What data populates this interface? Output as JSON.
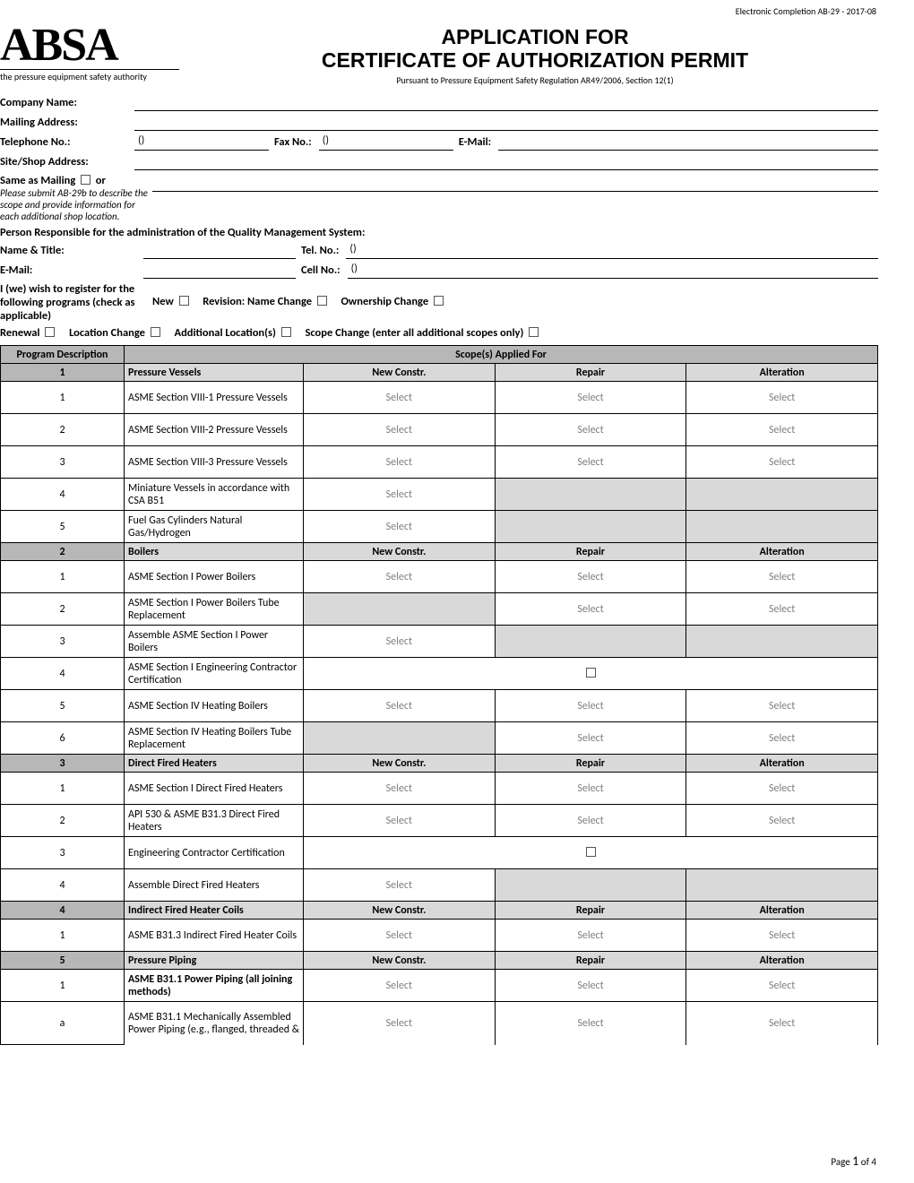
{
  "meta": {
    "form_id": "Electronic Completion AB-29 - 2017-08"
  },
  "logo": {
    "name": "ABSA",
    "tagline": "the pressure equipment safety authority"
  },
  "title": {
    "line1": "APPLICATION FOR",
    "line2": "CERTIFICATE OF AUTHORIZATION PERMIT",
    "sub": "Pursuant to Pressure Equipment Safety Regulation AR49/2006, Section 12(1)"
  },
  "labels": {
    "company": "Company Name:",
    "mailing": "Mailing Address:",
    "tel": "Telephone No.:",
    "fax": "Fax No.:",
    "email": "E-Mail:",
    "site": "Site/Shop Address:",
    "same_as_mailing_prefix": "Same as Mailing",
    "same_as_mailing_suffix": "or",
    "site_note": "Please submit AB-29b to describe the scope and provide information for each additional shop location.",
    "qms_person": "Person Responsible for the administration of the Quality Management System:",
    "name_title": "Name & Title:",
    "tel2": "Tel. No.:",
    "email2": "E-Mail:",
    "cell": "Cell No.:",
    "register_intro": "I (we) wish to register for the following programs (check as applicable)",
    "parens": "()",
    "opts": {
      "new": "New",
      "revision": "Revision: Name Change",
      "ownership": "Ownership Change",
      "renewal": "Renewal",
      "location": "Location Change",
      "additional": "Additional Location(s)",
      "scope": "Scope Change (enter all additional scopes only)"
    }
  },
  "table": {
    "head": {
      "program": "Program Description",
      "scopes": "Scope(s) Applied For",
      "new": "New Constr.",
      "repair": "Repair",
      "alt": "Alteration",
      "select": "Select"
    },
    "sections": [
      {
        "num": "1",
        "title": "Pressure Vessels",
        "rows": [
          {
            "n": "1",
            "d": "ASME Section VIII-1 Pressure Vessels",
            "c": [
              "sel",
              "sel",
              "sel"
            ]
          },
          {
            "n": "2",
            "d": "ASME Section VIII-2 Pressure Vessels",
            "c": [
              "sel",
              "sel",
              "sel"
            ]
          },
          {
            "n": "3",
            "d": "ASME Section VIII-3 Pressure Vessels",
            "c": [
              "sel",
              "sel",
              "sel"
            ]
          },
          {
            "n": "4",
            "d": "Miniature Vessels in accordance with CSA B51",
            "c": [
              "sel",
              "shade",
              "shade"
            ]
          },
          {
            "n": "5",
            "d": "Fuel Gas Cylinders Natural Gas/Hydrogen",
            "c": [
              "sel",
              "shade",
              "shade"
            ]
          }
        ]
      },
      {
        "num": "2",
        "title": "Boilers",
        "rows": [
          {
            "n": "1",
            "d": "ASME Section I Power Boilers",
            "c": [
              "sel",
              "sel",
              "sel"
            ]
          },
          {
            "n": "2",
            "d": "ASME Section I Power Boilers Tube Replacement",
            "c": [
              "shade",
              "sel",
              "sel"
            ]
          },
          {
            "n": "3",
            "d": "Assemble ASME Section I Power Boilers",
            "c": [
              "sel",
              "shade",
              "shade"
            ]
          },
          {
            "n": "4",
            "d": "ASME Section I Engineering Contractor Certification",
            "c": [
              "check3"
            ]
          },
          {
            "n": "5",
            "d": "ASME Section IV Heating Boilers",
            "c": [
              "sel",
              "sel",
              "sel"
            ]
          },
          {
            "n": "6",
            "d": "ASME Section IV Heating Boilers Tube Replacement",
            "c": [
              "shade",
              "sel",
              "sel"
            ]
          }
        ]
      },
      {
        "num": "3",
        "title": "Direct Fired Heaters",
        "rows": [
          {
            "n": "1",
            "d": "ASME Section I Direct Fired Heaters",
            "c": [
              "sel",
              "sel",
              "sel"
            ]
          },
          {
            "n": "2",
            "d": "API 530 & ASME B31.3 Direct Fired Heaters",
            "c": [
              "sel",
              "sel",
              "sel"
            ]
          },
          {
            "n": "3",
            "d": "Engineering Contractor Certification",
            "c": [
              "check3"
            ]
          },
          {
            "n": "4",
            "d": "Assemble Direct Fired Heaters",
            "c": [
              "sel",
              "shade",
              "shade"
            ]
          }
        ]
      },
      {
        "num": "4",
        "title": "Indirect Fired Heater Coils",
        "rows": [
          {
            "n": "1",
            "d": "ASME B31.3 Indirect Fired Heater Coils",
            "c": [
              "sel",
              "sel",
              "sel"
            ]
          }
        ]
      },
      {
        "num": "5",
        "title": "Pressure Piping",
        "rows": [
          {
            "n": "1",
            "d": "ASME B31.1 Power Piping (all joining methods)",
            "bold": true,
            "c": [
              "sel",
              "sel",
              "sel"
            ]
          },
          {
            "n": "a",
            "d": "ASME B31.1 Mechanically Assembled Power Piping (e.g., flanged, threaded &",
            "c": [
              "sel",
              "sel",
              "sel"
            ],
            "big": true,
            "noborder": true
          }
        ]
      }
    ]
  },
  "footer": {
    "prefix": "Page ",
    "num": "1",
    "suffix": " of 4"
  }
}
